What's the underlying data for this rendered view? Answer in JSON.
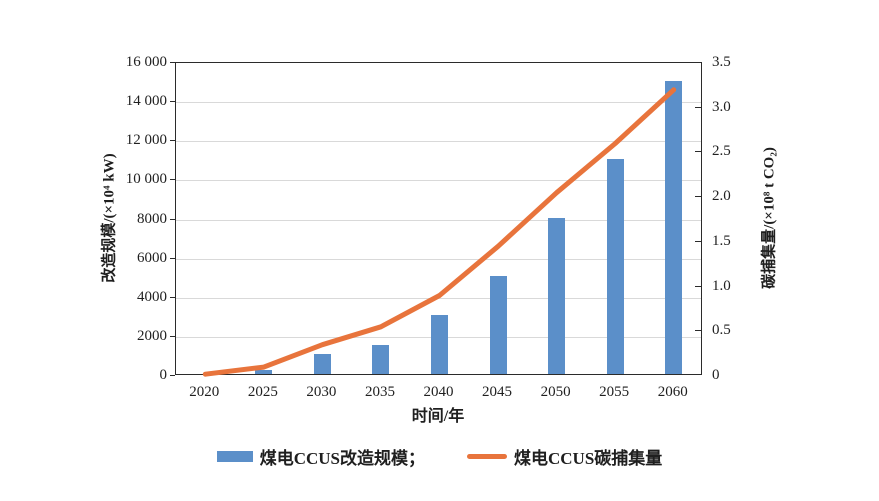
{
  "chart_data": {
    "type": "combo_bar_line",
    "title": "",
    "categories": [
      "2020",
      "2025",
      "2030",
      "2035",
      "2040",
      "2045",
      "2050",
      "2055",
      "2060"
    ],
    "series": [
      {
        "name": "煤电CCUS改造规模",
        "kind": "bar",
        "axis": "left",
        "color": "#5b8fc9",
        "values": [
          0,
          200,
          1000,
          1500,
          3000,
          5000,
          8000,
          11000,
          15000
        ]
      },
      {
        "name": "煤电CCUS碳捕集量",
        "kind": "line",
        "axis": "right",
        "color": "#e8743c",
        "values": [
          0.02,
          0.1,
          0.35,
          0.55,
          0.9,
          1.45,
          2.05,
          2.6,
          3.2
        ]
      }
    ],
    "x_axis": {
      "label": "时间/年",
      "tick_labels": [
        "2020",
        "2025",
        "2030",
        "2035",
        "2040",
        "2045",
        "2050",
        "2055",
        "2060"
      ]
    },
    "left_axis": {
      "label": "改造规模/(×10⁴ kW)",
      "range": [
        0,
        16000
      ],
      "tick_labels": [
        "0",
        "2000",
        "4000",
        "6000",
        "8000",
        "10 000",
        "12 000",
        "14 000",
        "16 000"
      ]
    },
    "right_axis": {
      "label": "碳捕集量/(×10⁸ t CO₂)",
      "range": [
        0,
        3.5
      ],
      "tick_labels": [
        "0",
        "0.5",
        "1.0",
        "1.5",
        "2.0",
        "2.5",
        "3.0",
        "3.5"
      ]
    },
    "legend": [
      {
        "label": "煤电CCUS改造规模；",
        "swatch": "bar",
        "color": "#5b8fc9"
      },
      {
        "label": "煤电CCUS碳捕集量",
        "swatch": "line",
        "color": "#e8743c"
      }
    ],
    "grid": "horizontal-gray",
    "colors": {
      "bar": "#5b8fc9",
      "line": "#e8743c",
      "gridline": "#d9d9d9",
      "axis": "#2b2b2b"
    }
  }
}
